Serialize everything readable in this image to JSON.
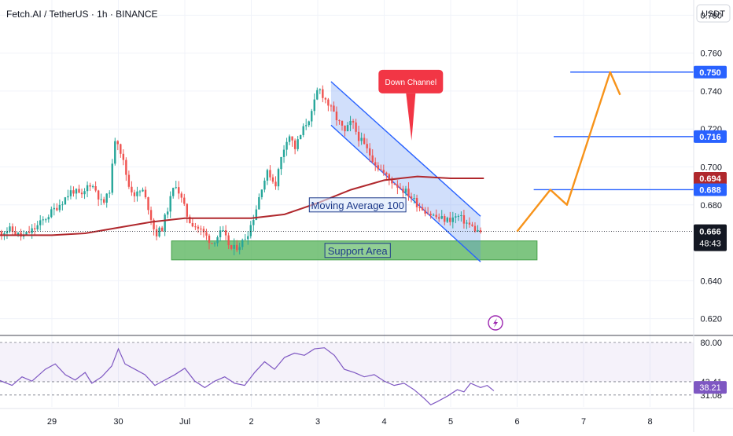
{
  "header": {
    "title": "Fetch.AI / TetherUS · 1h · BINANCE"
  },
  "chart_data": {
    "type": "candlestick",
    "title": "Fetch.AI / TetherUS · 1h · BINANCE",
    "price_axis": {
      "unit_label": "USDT",
      "ylim": [
        0.612,
        0.788
      ],
      "ticks": [
        "0.780",
        "0.760",
        "0.740",
        "0.720",
        "0.700",
        "0.680",
        "0.640",
        "0.620"
      ]
    },
    "time_axis": {
      "ticks": [
        {
          "label": "29",
          "day": 0
        },
        {
          "label": "30",
          "day": 1
        },
        {
          "label": "Jul",
          "day": 2
        },
        {
          "label": "2",
          "day": 3
        },
        {
          "label": "3",
          "day": 4
        },
        {
          "label": "4",
          "day": 5
        },
        {
          "label": "5",
          "day": 6
        },
        {
          "label": "6",
          "day": 7
        },
        {
          "label": "7",
          "day": 8
        },
        {
          "label": "8",
          "day": 9
        }
      ]
    },
    "price_path": [
      [
        -0.8,
        0.665
      ],
      [
        -0.6,
        0.667
      ],
      [
        -0.4,
        0.663
      ],
      [
        -0.2,
        0.668
      ],
      [
        0.0,
        0.675
      ],
      [
        0.2,
        0.682
      ],
      [
        0.35,
        0.688
      ],
      [
        0.5,
        0.684
      ],
      [
        0.6,
        0.692
      ],
      [
        0.7,
        0.688
      ],
      [
        0.8,
        0.68
      ],
      [
        0.9,
        0.686
      ],
      [
        0.95,
        0.7
      ],
      [
        1.0,
        0.718
      ],
      [
        1.1,
        0.705
      ],
      [
        1.2,
        0.69
      ],
      [
        1.3,
        0.685
      ],
      [
        1.4,
        0.688
      ],
      [
        1.5,
        0.678
      ],
      [
        1.6,
        0.664
      ],
      [
        1.7,
        0.668
      ],
      [
        1.8,
        0.68
      ],
      [
        1.9,
        0.692
      ],
      [
        2.0,
        0.682
      ],
      [
        2.1,
        0.672
      ],
      [
        2.3,
        0.666
      ],
      [
        2.45,
        0.66
      ],
      [
        2.6,
        0.666
      ],
      [
        2.75,
        0.656
      ],
      [
        2.9,
        0.66
      ],
      [
        3.0,
        0.666
      ],
      [
        3.1,
        0.676
      ],
      [
        3.2,
        0.69
      ],
      [
        3.3,
        0.698
      ],
      [
        3.4,
        0.69
      ],
      [
        3.5,
        0.706
      ],
      [
        3.6,
        0.718
      ],
      [
        3.7,
        0.71
      ],
      [
        3.85,
        0.722
      ],
      [
        3.95,
        0.728
      ],
      [
        4.05,
        0.742
      ],
      [
        4.15,
        0.736
      ],
      [
        4.25,
        0.73
      ],
      [
        4.35,
        0.724
      ],
      [
        4.45,
        0.718
      ],
      [
        4.55,
        0.724
      ],
      [
        4.65,
        0.716
      ],
      [
        4.8,
        0.708
      ],
      [
        4.95,
        0.7
      ],
      [
        5.1,
        0.694
      ],
      [
        5.25,
        0.69
      ],
      [
        5.4,
        0.686
      ],
      [
        5.55,
        0.68
      ],
      [
        5.7,
        0.676
      ],
      [
        5.85,
        0.673
      ],
      [
        6.0,
        0.672
      ],
      [
        6.15,
        0.674
      ],
      [
        6.3,
        0.67
      ],
      [
        6.45,
        0.666
      ]
    ],
    "series": [
      {
        "name": "Moving Average 100",
        "values": [
          [
            -0.8,
            0.664
          ],
          [
            0.0,
            0.664
          ],
          [
            0.5,
            0.665
          ],
          [
            1.0,
            0.668
          ],
          [
            1.5,
            0.671
          ],
          [
            2.0,
            0.673
          ],
          [
            2.5,
            0.673
          ],
          [
            3.0,
            0.673
          ],
          [
            3.5,
            0.675
          ],
          [
            4.0,
            0.681
          ],
          [
            4.5,
            0.688
          ],
          [
            5.0,
            0.693
          ],
          [
            5.5,
            0.695
          ],
          [
            6.0,
            0.694
          ],
          [
            6.5,
            0.694
          ]
        ]
      }
    ],
    "current_price": {
      "label": "0.666",
      "countdown": "48:43"
    },
    "price_labels": [
      {
        "value": 0.75,
        "label": "0.750"
      },
      {
        "value": 0.716,
        "label": "0.716"
      },
      {
        "value": 0.694,
        "label": "0.694"
      },
      {
        "value": 0.688,
        "label": "0.688"
      }
    ],
    "horizontal_lines": [
      {
        "value": 0.75,
        "from_day": 7.8,
        "to_day": 9.6
      },
      {
        "value": 0.716,
        "from_day": 7.55,
        "to_day": 9.6
      },
      {
        "value": 0.688,
        "from_day": 7.25,
        "to_day": 9.6
      }
    ],
    "channel": {
      "upper": [
        [
          4.2,
          0.745
        ],
        [
          6.45,
          0.674
        ]
      ],
      "lower": [
        [
          4.2,
          0.722
        ],
        [
          6.45,
          0.65
        ]
      ]
    },
    "support_zone": {
      "from_day": 1.8,
      "to_day": 7.3,
      "low": 0.651,
      "high": 0.661
    },
    "projection": [
      [
        7.0,
        0.666
      ],
      [
        7.5,
        0.688
      ],
      [
        7.75,
        0.68
      ],
      [
        8.4,
        0.75
      ],
      [
        8.55,
        0.738
      ]
    ],
    "annotations": [
      {
        "text": "Down Channel",
        "day": 5.4,
        "value": 0.745
      },
      {
        "text": "Moving Average 100",
        "day": 4.6,
        "value": 0.68
      },
      {
        "text": "Support Area",
        "day": 4.6,
        "value": 0.656
      }
    ],
    "rsi_panel": {
      "ylim": [
        20,
        85
      ],
      "ticks": [
        "80.00",
        "43.41",
        "31.08"
      ],
      "current_label": "38.21",
      "levels": [
        80.0,
        43.41,
        31.08
      ],
      "values": [
        [
          -0.8,
          45
        ],
        [
          -0.6,
          40
        ],
        [
          -0.45,
          48
        ],
        [
          -0.3,
          44
        ],
        [
          -0.1,
          55
        ],
        [
          0.05,
          60
        ],
        [
          0.2,
          50
        ],
        [
          0.35,
          45
        ],
        [
          0.5,
          52
        ],
        [
          0.6,
          42
        ],
        [
          0.75,
          48
        ],
        [
          0.9,
          58
        ],
        [
          1.0,
          74
        ],
        [
          1.1,
          60
        ],
        [
          1.25,
          55
        ],
        [
          1.4,
          50
        ],
        [
          1.55,
          40
        ],
        [
          1.7,
          45
        ],
        [
          1.85,
          50
        ],
        [
          2.0,
          56
        ],
        [
          2.15,
          44
        ],
        [
          2.3,
          38
        ],
        [
          2.45,
          44
        ],
        [
          2.6,
          48
        ],
        [
          2.75,
          42
        ],
        [
          2.9,
          40
        ],
        [
          3.05,
          52
        ],
        [
          3.2,
          62
        ],
        [
          3.35,
          55
        ],
        [
          3.5,
          66
        ],
        [
          3.65,
          70
        ],
        [
          3.8,
          68
        ],
        [
          3.95,
          74
        ],
        [
          4.1,
          75
        ],
        [
          4.25,
          68
        ],
        [
          4.4,
          55
        ],
        [
          4.55,
          52
        ],
        [
          4.7,
          48
        ],
        [
          4.85,
          50
        ],
        [
          5.0,
          44
        ],
        [
          5.15,
          40
        ],
        [
          5.3,
          42
        ],
        [
          5.45,
          36
        ],
        [
          5.6,
          28
        ],
        [
          5.7,
          22
        ],
        [
          5.8,
          25
        ],
        [
          5.95,
          30
        ],
        [
          6.1,
          36
        ],
        [
          6.2,
          34
        ],
        [
          6.3,
          42
        ],
        [
          6.45,
          38
        ],
        [
          6.55,
          40
        ],
        [
          6.65,
          35
        ]
      ]
    },
    "colors": {
      "up": "#26a69a",
      "down": "#ef5350",
      "ma": "#b0282d",
      "hline": "#2962ff",
      "projection": "#f7931a",
      "channel_fill": "#5b8def",
      "rsi": "#7e57c2",
      "support": "#4caf50"
    }
  }
}
